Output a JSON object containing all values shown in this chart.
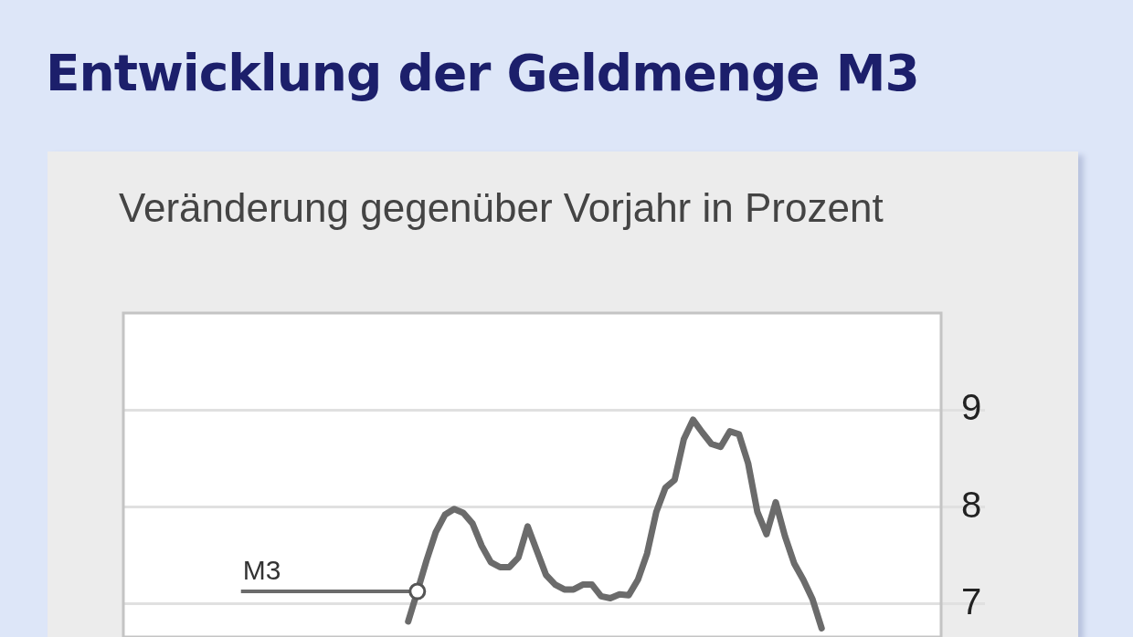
{
  "chart_data": {
    "type": "line",
    "title": "Entwicklung der Geldmenge M3",
    "subtitle": "Veränderung gegenüber Vorjahr in Prozent",
    "categories": [
      null,
      null,
      null,
      null,
      null,
      null,
      null,
      null,
      null,
      null,
      null,
      null,
      null,
      null,
      null,
      null,
      null,
      null,
      null,
      null,
      null,
      null,
      null,
      null,
      null,
      null,
      null,
      null,
      null,
      null,
      null,
      null,
      null,
      null,
      null,
      null,
      null,
      null,
      null,
      null,
      null,
      null,
      null,
      null,
      null,
      null,
      null,
      null,
      null,
      null,
      null,
      null,
      null,
      null,
      null,
      null,
      null,
      null,
      null,
      null,
      null,
      null,
      null,
      null,
      null,
      null,
      null,
      null,
      null,
      null,
      null,
      null,
      null,
      null,
      null,
      null,
      null,
      null,
      null,
      null,
      null,
      null,
      null,
      null,
      null,
      null,
      null,
      null,
      null,
      null
    ],
    "series": [
      {
        "name": "M3",
        "color": "#6b6b6b",
        "values": [
          null,
          null,
          null,
          null,
          null,
          null,
          null,
          null,
          null,
          null,
          null,
          null,
          null,
          null,
          null,
          null,
          null,
          null,
          null,
          null,
          null,
          null,
          null,
          null,
          null,
          null,
          null,
          null,
          null,
          null,
          null,
          6.82,
          7.13,
          7.45,
          7.74,
          7.92,
          7.98,
          7.94,
          7.83,
          7.6,
          7.43,
          7.38,
          7.38,
          7.48,
          7.8,
          7.55,
          7.3,
          7.2,
          7.15,
          7.15,
          7.2,
          7.2,
          7.08,
          7.06,
          7.1,
          7.09,
          7.25,
          7.52,
          7.95,
          8.2,
          8.28,
          8.7,
          8.9,
          8.77,
          8.65,
          8.62,
          8.78,
          8.75,
          8.45,
          7.95,
          7.72,
          8.05,
          7.7,
          7.42,
          7.25,
          7.05,
          6.75,
          null,
          null,
          null,
          null,
          null,
          null,
          null,
          null,
          null,
          null,
          null,
          null,
          null
        ]
      }
    ],
    "ylim": [
      6.66,
      10
    ],
    "yticks": [
      7,
      8,
      9
    ],
    "grid": "y"
  }
}
